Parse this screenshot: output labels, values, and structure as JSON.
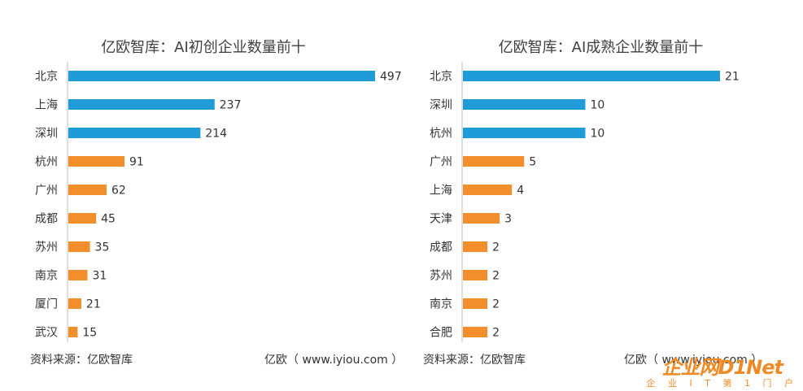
{
  "chart_data": [
    {
      "type": "bar",
      "orientation": "horizontal",
      "title": "亿欧智库：AI初创企业数量前十",
      "categories": [
        "北京",
        "上海",
        "深圳",
        "杭州",
        "广州",
        "成都",
        "苏州",
        "南京",
        "厦门",
        "武汉"
      ],
      "values": [
        497,
        237,
        214,
        91,
        62,
        45,
        35,
        31,
        21,
        15
      ],
      "bar_colors": [
        "#1f9bd7",
        "#1f9bd7",
        "#1f9bd7",
        "#f28e2b",
        "#f28e2b",
        "#f28e2b",
        "#f28e2b",
        "#f28e2b",
        "#f28e2b",
        "#f28e2b"
      ],
      "xlim": [
        0,
        497
      ],
      "grid": false,
      "data_labels": true
    },
    {
      "type": "bar",
      "orientation": "horizontal",
      "title": "亿欧智库：AI成熟企业数量前十",
      "categories": [
        "北京",
        "深圳",
        "杭州",
        "广州",
        "上海",
        "天津",
        "成都",
        "苏州",
        "南京",
        "合肥"
      ],
      "values": [
        21,
        10,
        10,
        5,
        4,
        3,
        2,
        2,
        2,
        2
      ],
      "bar_colors": [
        "#1f9bd7",
        "#1f9bd7",
        "#1f9bd7",
        "#f28e2b",
        "#f28e2b",
        "#f28e2b",
        "#f28e2b",
        "#f28e2b",
        "#f28e2b",
        "#f28e2b"
      ],
      "xlim": [
        0,
        21
      ],
      "grid": false,
      "data_labels": true
    }
  ],
  "footers": [
    {
      "source": "资料来源：亿欧智库",
      "credit": "亿欧（ www.iyiou.com ）"
    },
    {
      "source": "资料来源：亿欧智库",
      "credit": "亿欧（ www.iyiou.com ）"
    }
  ],
  "watermark": {
    "logo": "企业网D1Net",
    "tagline": "企 业 I T 第 1 门 户"
  },
  "colors": {
    "axis": "#bfbfbf",
    "label_text": "#333333"
  }
}
